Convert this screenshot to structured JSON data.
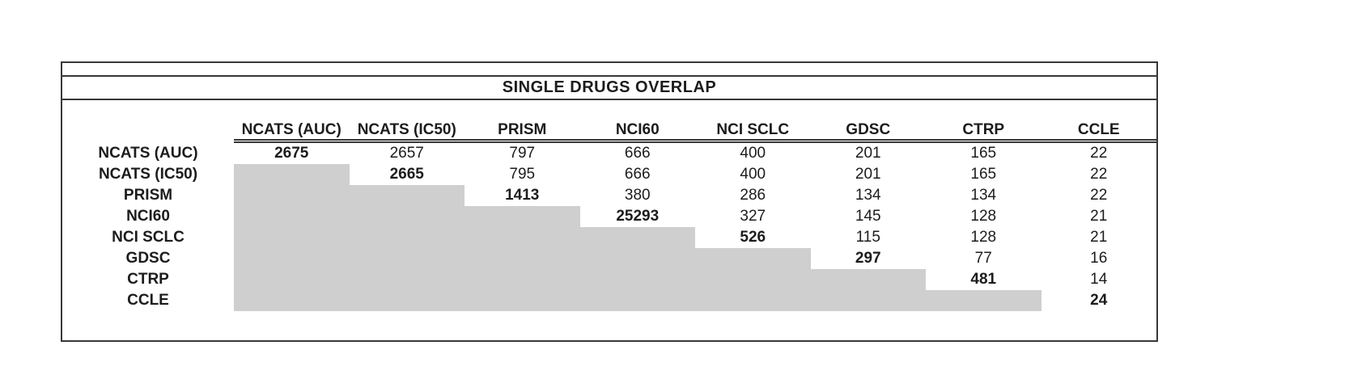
{
  "page": {
    "background": "#ffffff"
  },
  "table": {
    "title": "SINGLE DRUGS OVERLAP",
    "columns": [
      "NCATS (AUC)",
      "NCATS (IC50)",
      "PRISM",
      "NCI60",
      "NCI SCLC",
      "GDSC",
      "CTRP",
      "CCLE"
    ],
    "rows": [
      {
        "label": "NCATS (AUC)",
        "values": [
          "2675",
          "2657",
          "797",
          "666",
          "400",
          "201",
          "165",
          "22"
        ]
      },
      {
        "label": "NCATS (IC50)",
        "values": [
          "",
          "2665",
          "795",
          "666",
          "400",
          "201",
          "165",
          "22"
        ]
      },
      {
        "label": "PRISM",
        "values": [
          "",
          "",
          "1413",
          "380",
          "286",
          "134",
          "134",
          "22"
        ]
      },
      {
        "label": "NCI60",
        "values": [
          "",
          "",
          "",
          "25293",
          "327",
          "145",
          "128",
          "21"
        ]
      },
      {
        "label": "NCI SCLC",
        "values": [
          "",
          "",
          "",
          "",
          "526",
          "115",
          "128",
          "21"
        ]
      },
      {
        "label": "GDSC",
        "values": [
          "",
          "",
          "",
          "",
          "",
          "297",
          "77",
          "16"
        ]
      },
      {
        "label": "CTRP",
        "values": [
          "",
          "",
          "",
          "",
          "",
          "",
          "481",
          "14"
        ]
      },
      {
        "label": "CCLE",
        "values": [
          "",
          "",
          "",
          "",
          "",
          "",
          "",
          "24"
        ]
      }
    ],
    "colors": {
      "shaded_cell": "#d0cfd0",
      "border": "#383838",
      "text": "#1c1c1c"
    }
  },
  "chart_data": {
    "type": "table",
    "title": "SINGLE DRUGS OVERLAP",
    "columns": [
      "NCATS (AUC)",
      "NCATS (IC50)",
      "PRISM",
      "NCI60",
      "NCI SCLC",
      "GDSC",
      "CTRP",
      "CCLE"
    ],
    "row_labels": [
      "NCATS (AUC)",
      "NCATS (IC50)",
      "PRISM",
      "NCI60",
      "NCI SCLC",
      "GDSC",
      "CTRP",
      "CCLE"
    ],
    "matrix": [
      [
        2675,
        2657,
        797,
        666,
        400,
        201,
        165,
        22
      ],
      [
        null,
        2665,
        795,
        666,
        400,
        201,
        165,
        22
      ],
      [
        null,
        null,
        1413,
        380,
        286,
        134,
        134,
        22
      ],
      [
        null,
        null,
        null,
        25293,
        327,
        145,
        128,
        21
      ],
      [
        null,
        null,
        null,
        null,
        526,
        115,
        128,
        21
      ],
      [
        null,
        null,
        null,
        null,
        null,
        297,
        77,
        16
      ],
      [
        null,
        null,
        null,
        null,
        null,
        null,
        481,
        14
      ],
      [
        null,
        null,
        null,
        null,
        null,
        null,
        null,
        24
      ]
    ],
    "layout": {
      "diagonal_values_bold": true,
      "lower_triangle": "shaded gray, empty",
      "header_underline": "double",
      "shaded_color": "#d0cfd0",
      "grid": false,
      "legend": false
    }
  }
}
